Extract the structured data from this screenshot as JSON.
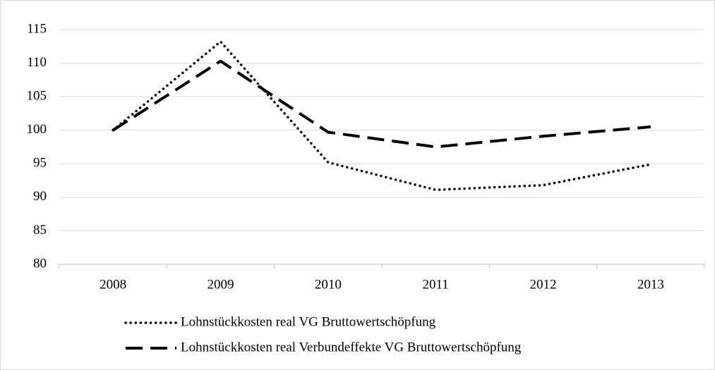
{
  "chart_data": {
    "type": "line",
    "categories": [
      "2008",
      "2009",
      "2010",
      "2011",
      "2012",
      "2013"
    ],
    "series": [
      {
        "name": "Lohnstückkosten real VG Bruttowertschöpfung",
        "color": "#000000",
        "line_style": "dotted",
        "values": [
          100,
          113.2,
          95.2,
          91.1,
          91.8,
          94.9
        ]
      },
      {
        "name": "Lohnstückkosten real Verbundeffekte VG Bruttowertschöpfung",
        "color": "#000000",
        "line_style": "dashed",
        "values": [
          100,
          110.3,
          99.7,
          97.5,
          99.1,
          100.5
        ]
      }
    ],
    "ylim": [
      80,
      115
    ],
    "yticks": [
      80,
      85,
      90,
      95,
      100,
      105,
      110,
      115
    ],
    "grid": true,
    "legend": "bottom"
  }
}
